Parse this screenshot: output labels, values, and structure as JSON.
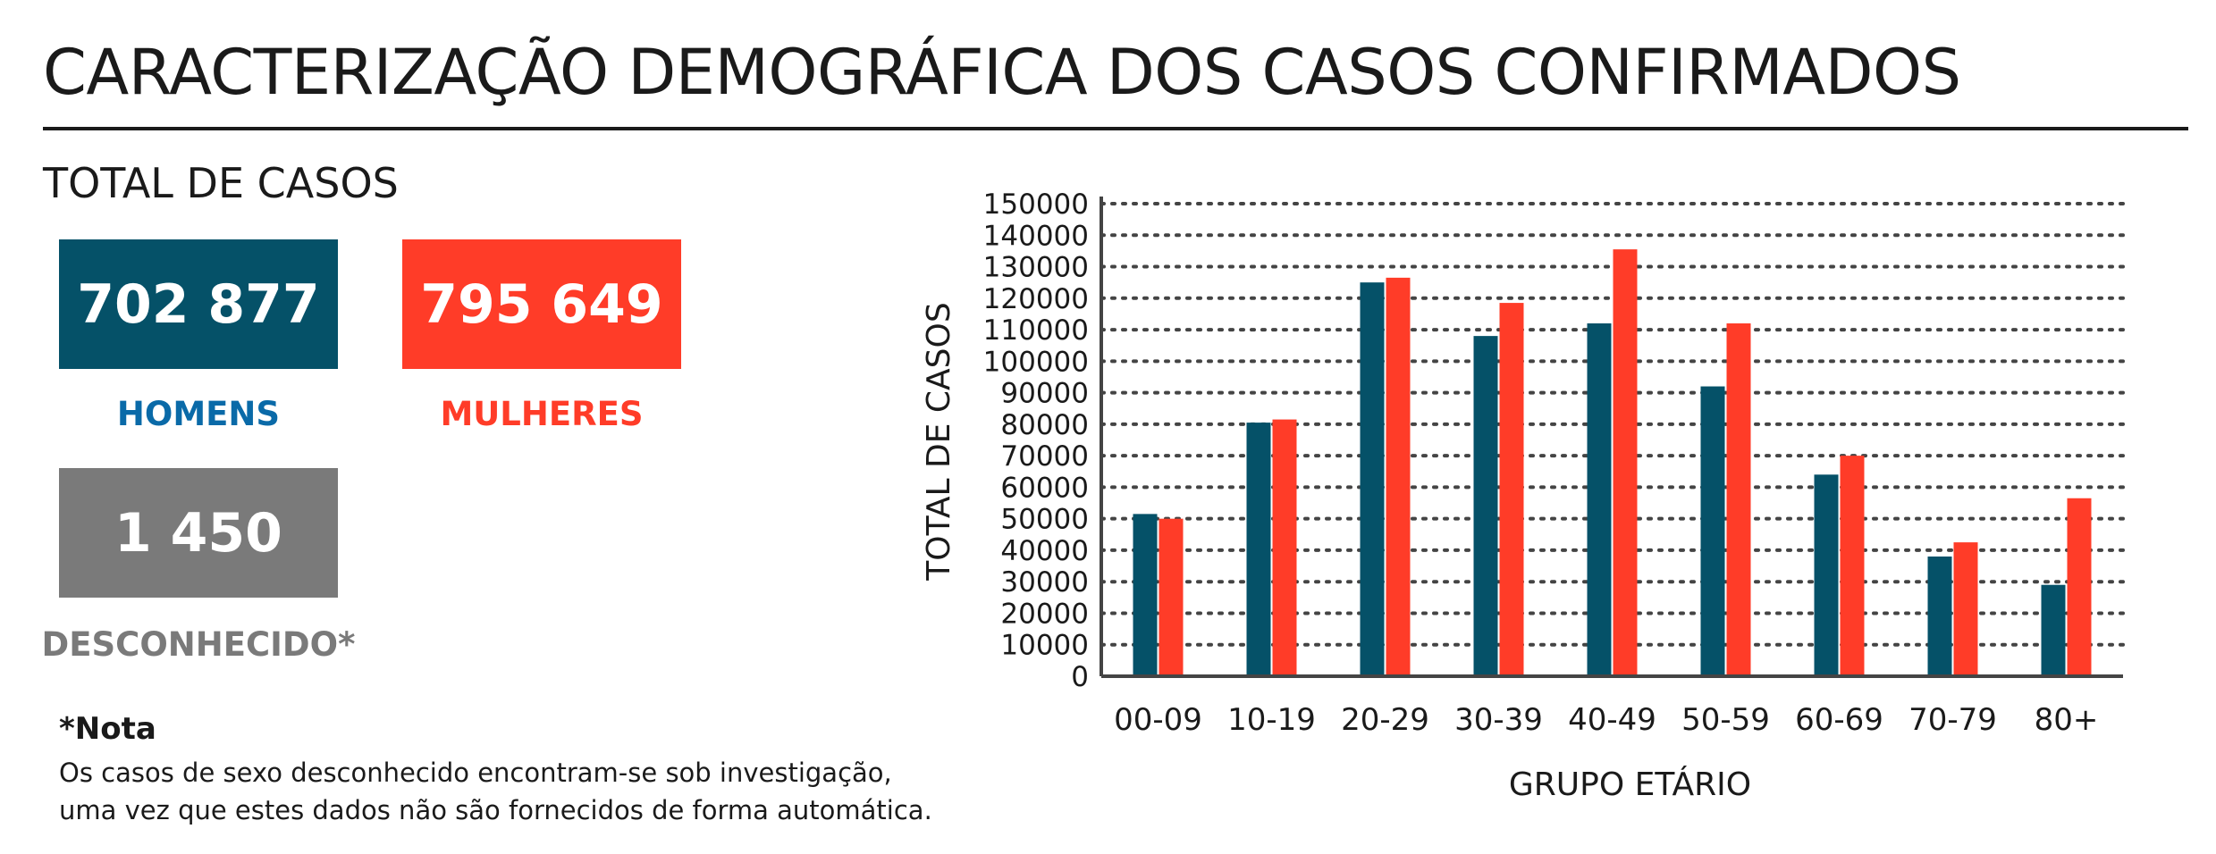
{
  "header": {
    "title": "CARACTERIZAÇÃO DEMOGRÁFICA DOS CASOS CONFIRMADOS",
    "section_title": "TOTAL DE CASOS"
  },
  "stats": {
    "men": {
      "value": "702 877",
      "label": "HOMENS",
      "box_color": "#055168",
      "label_color": "#0a6aa8"
    },
    "women": {
      "value": "795 649",
      "label": "MULHERES",
      "box_color": "#ff3c28",
      "label_color": "#ff3c28"
    },
    "unknown": {
      "value": "1 450",
      "label": "DESCONHECIDO*",
      "box_color": "#7a7a7a",
      "label_color": "#7a7a7a"
    }
  },
  "note": {
    "title": "*Nota",
    "line1": "Os casos de sexo desconhecido encontram-se sob investigação,",
    "line2": "uma vez que estes dados não são fornecidos de forma automática."
  },
  "chart_data": {
    "type": "bar",
    "xlabel": "GRUPO ETÁRIO",
    "ylabel": "TOTAL DE CASOS",
    "ylim": [
      0,
      150000
    ],
    "ytick_step": 10000,
    "grid": "horizontal-dotted",
    "categories": [
      "00-09",
      "10-19",
      "20-29",
      "30-39",
      "40-49",
      "50-59",
      "60-69",
      "70-79",
      "80+"
    ],
    "series": [
      {
        "color": "#055168",
        "values": [
          51500,
          80500,
          125000,
          108000,
          112000,
          92000,
          64000,
          38000,
          29000
        ]
      },
      {
        "color": "#ff3c28",
        "values": [
          50000,
          81500,
          126500,
          118500,
          135500,
          112000,
          70000,
          42500,
          56500
        ]
      }
    ]
  }
}
